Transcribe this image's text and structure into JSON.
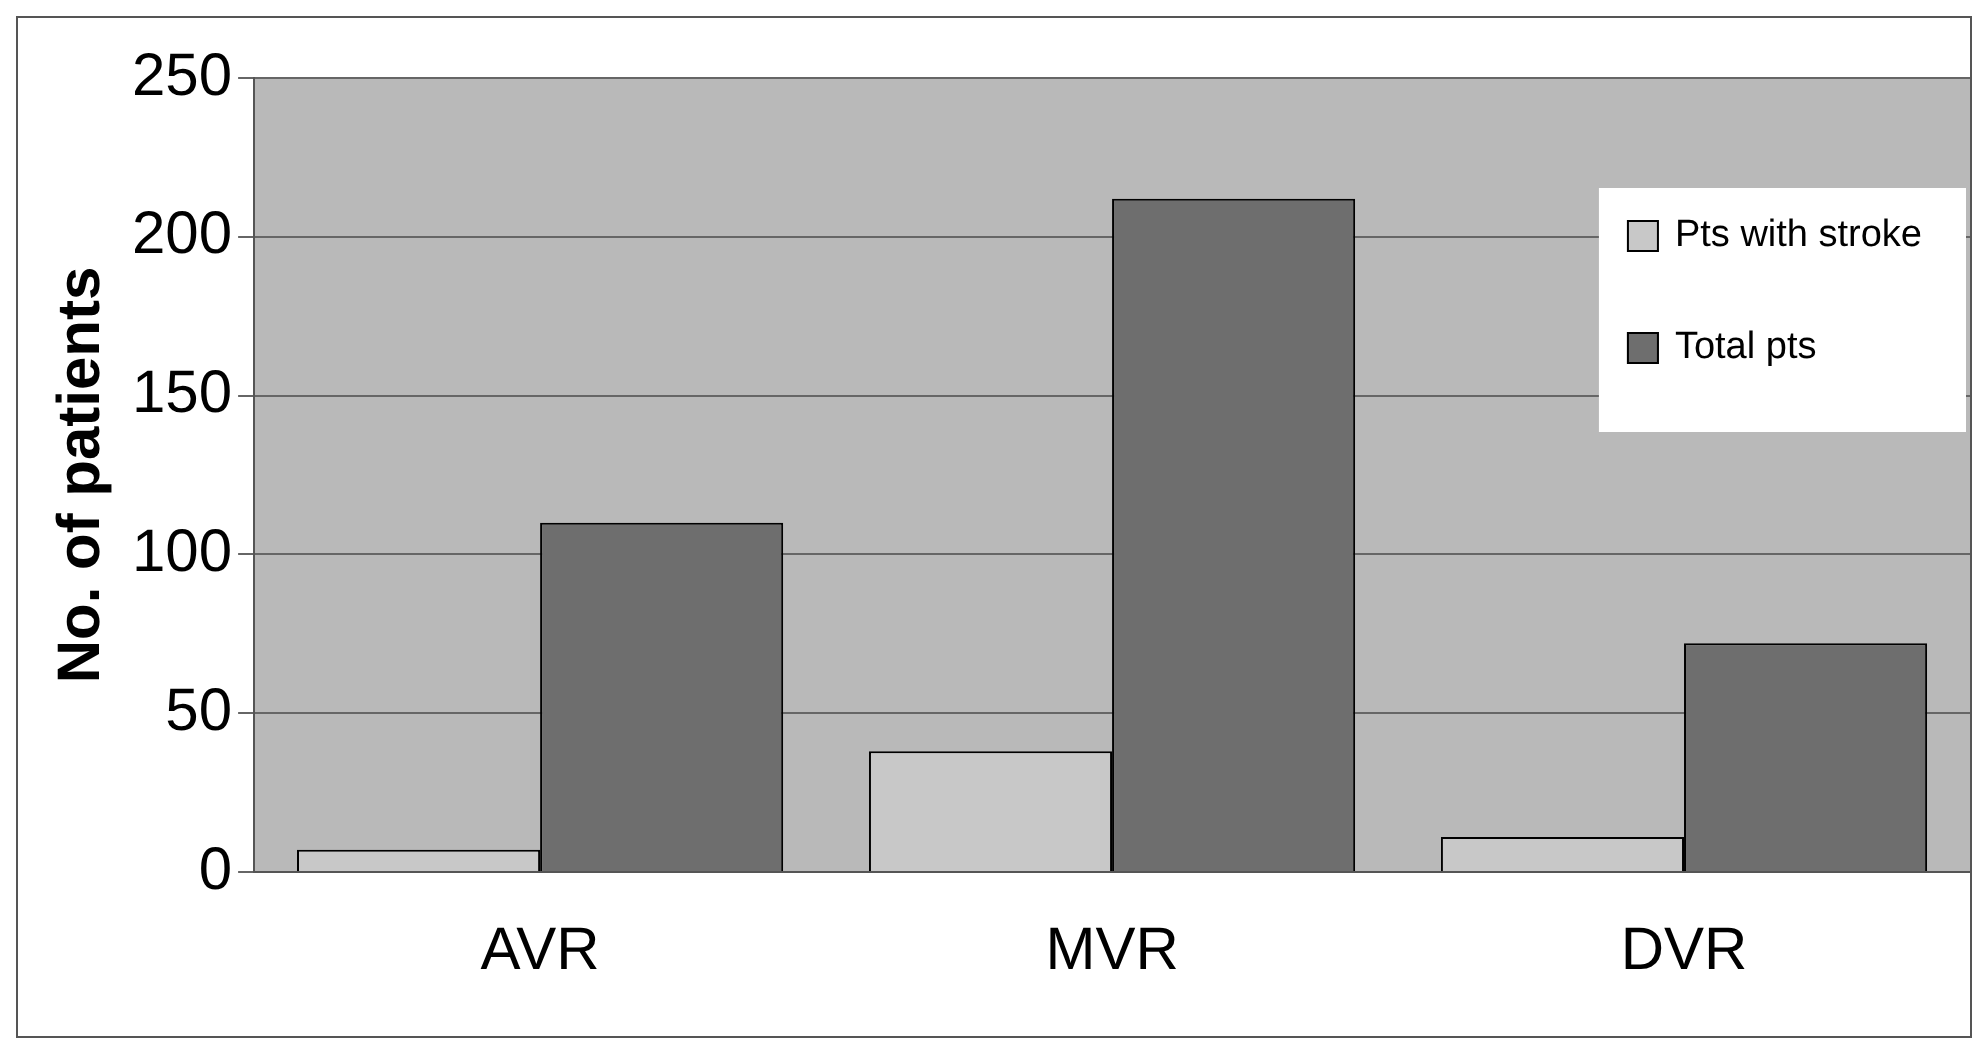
{
  "chart_data": {
    "type": "bar",
    "ylabel": "No. of patients",
    "categories": [
      "AVR",
      "MVR",
      "DVR"
    ],
    "series": [
      {
        "name": "Pts with stroke",
        "color": "#c8c8c8",
        "values": [
          7,
          38,
          11
        ]
      },
      {
        "name": "Total pts",
        "color": "#6e6e6e",
        "values": [
          110,
          212,
          72
        ]
      }
    ],
    "ylim": [
      0,
      250
    ],
    "yticks": [
      0,
      50,
      100,
      150,
      200,
      250
    ],
    "grid": "y",
    "legend": "top right"
  }
}
